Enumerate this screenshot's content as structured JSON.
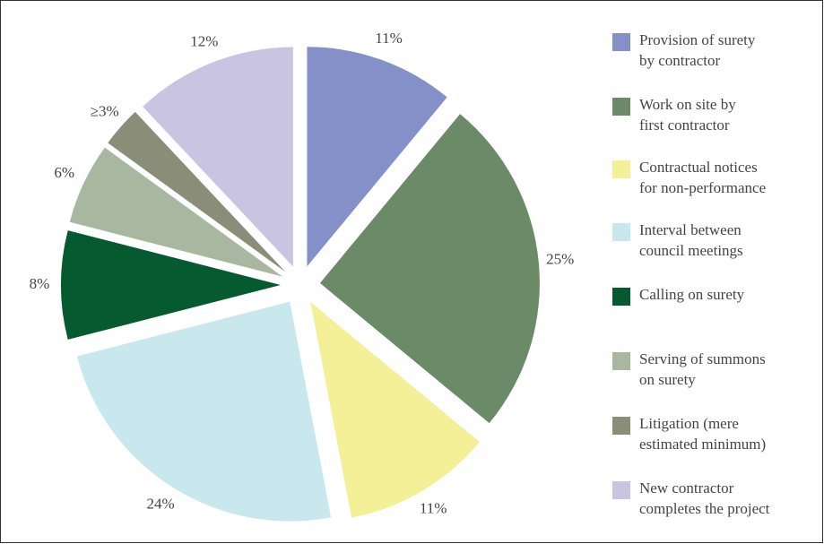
{
  "chart_data": {
    "type": "pie",
    "categories": [
      "Provision of surety\nby contractor",
      "Work on site by\nfirst contractor",
      "Contractual notices\nfor non-performance",
      "Interval between\ncouncil meetings",
      "Calling on surety",
      "Serving of summons\non surety",
      "Litigation (mere\nestimated minimum)",
      "New contractor\ncompletes the project"
    ],
    "values": [
      11,
      25,
      11,
      24,
      8,
      6,
      3,
      12
    ],
    "value_labels": [
      "11%",
      "25%",
      "11%",
      "24%",
      "8%",
      "6%",
      "≥3%",
      "12%"
    ],
    "colors": [
      "#8490c8",
      "#6a8a68",
      "#f3f098",
      "#c8e8ee",
      "#065a30",
      "#a8b8a0",
      "#8a8e78",
      "#c8c4e2"
    ]
  }
}
